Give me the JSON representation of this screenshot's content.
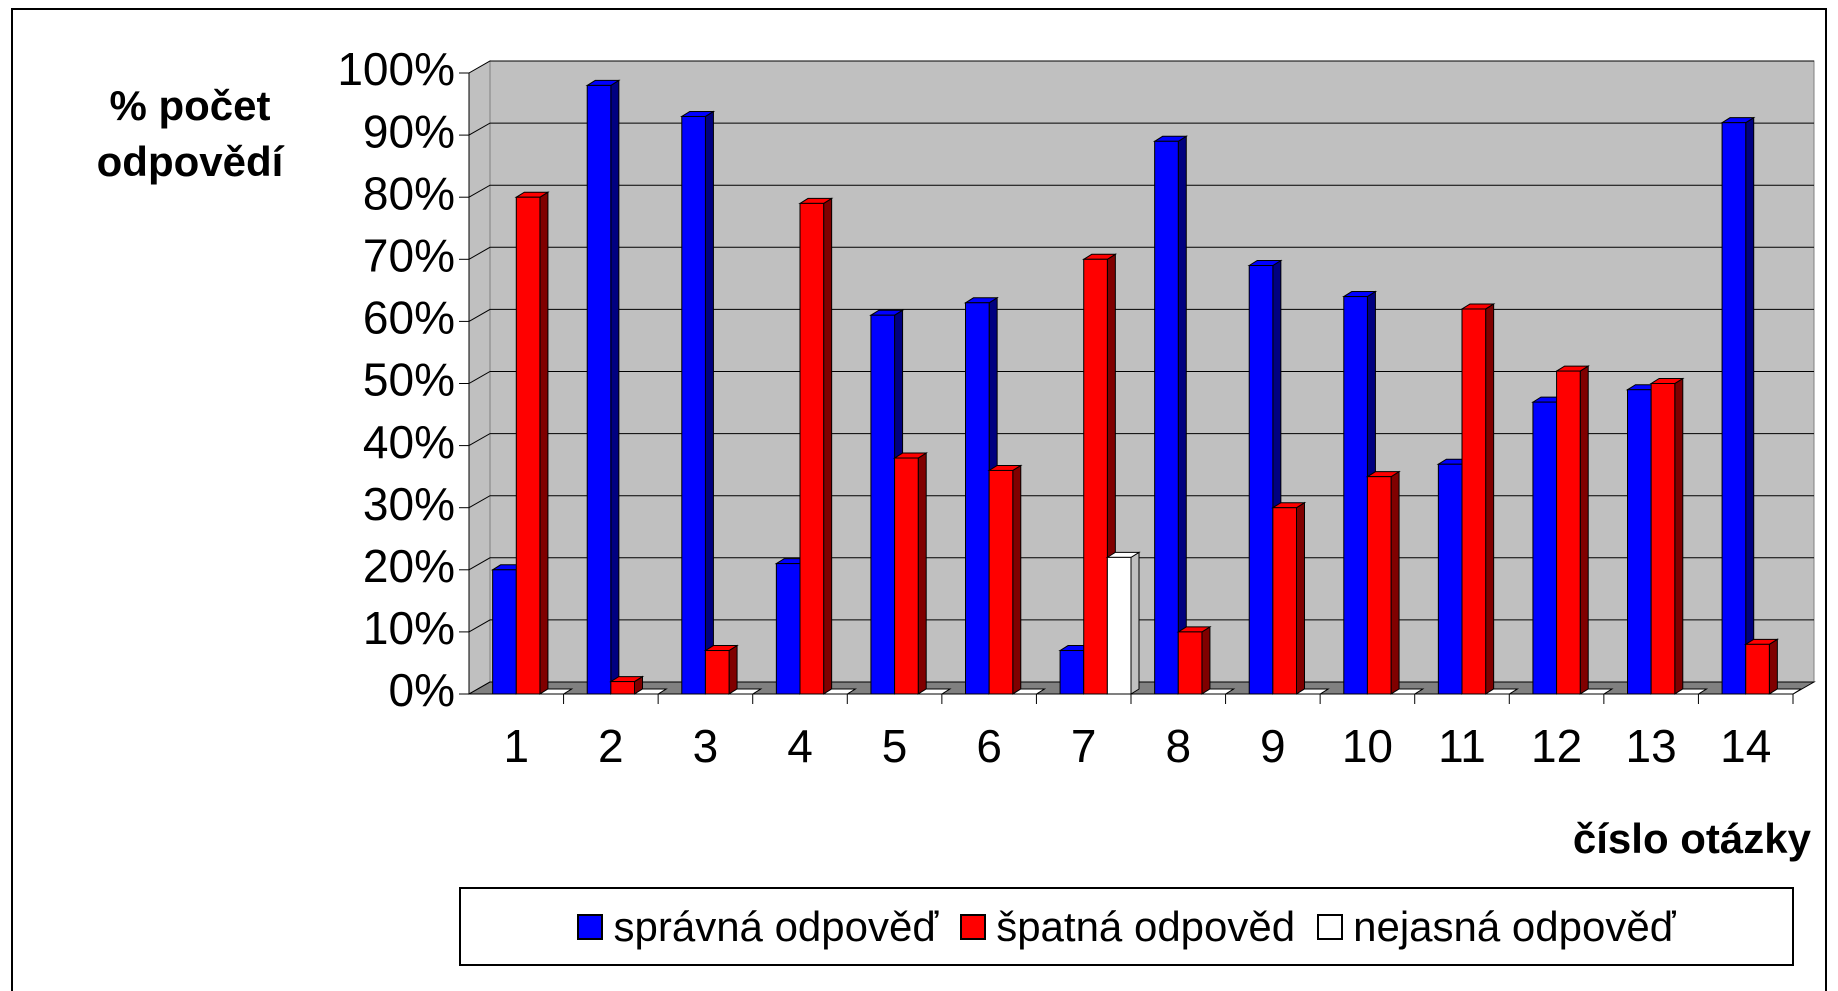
{
  "chart_data": {
    "type": "bar3d",
    "ylabel": "% počet odpovědí",
    "xlabel": "číslo otázky",
    "categories": [
      "1",
      "2",
      "3",
      "4",
      "5",
      "6",
      "7",
      "8",
      "9",
      "10",
      "11",
      "12",
      "13",
      "14"
    ],
    "series": [
      {
        "name": "správná odpověď",
        "color": "#0000ff",
        "values": [
          20,
          98,
          93,
          21,
          61,
          63,
          7,
          89,
          69,
          64,
          37,
          47,
          49,
          92
        ]
      },
      {
        "name": "špatná odpověd",
        "color": "#ff0000",
        "values": [
          80,
          2,
          7,
          79,
          38,
          36,
          70,
          10,
          30,
          35,
          62,
          52,
          50,
          8
        ]
      },
      {
        "name": "nejasná odpověď",
        "color": "#ffffff",
        "values": [
          0,
          0,
          0,
          0,
          0,
          0,
          22,
          0,
          0,
          0,
          0,
          0,
          0,
          0
        ]
      }
    ],
    "ylim": [
      0,
      100
    ],
    "yticks": [
      {
        "value": 0,
        "label": "0%"
      },
      {
        "value": 10,
        "label": "10%"
      },
      {
        "value": 20,
        "label": "20%"
      },
      {
        "value": 30,
        "label": "30%"
      },
      {
        "value": 40,
        "label": "40%"
      },
      {
        "value": 50,
        "label": "50%"
      },
      {
        "value": 60,
        "label": "60%"
      },
      {
        "value": 70,
        "label": "70%"
      },
      {
        "value": 80,
        "label": "80%"
      },
      {
        "value": 90,
        "label": "90%"
      },
      {
        "value": 100,
        "label": "100%"
      }
    ],
    "grid": true,
    "legend": "bottom"
  }
}
